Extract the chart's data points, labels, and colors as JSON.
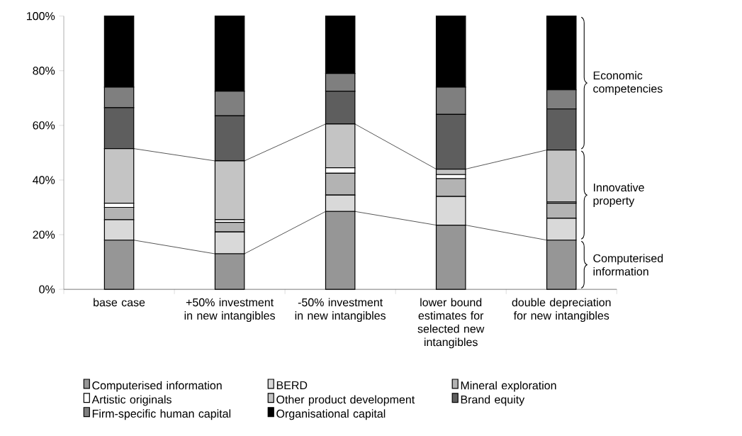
{
  "chart_data": {
    "type": "bar",
    "stacked": true,
    "categories": [
      "base case",
      "+50% investment in new intangibles",
      "-50% investment in new intangibles",
      "lower bound estimates for selected new intangibles",
      "double depreciation for new intangibles"
    ],
    "series": [
      {
        "name": "Computerised information",
        "color": "#969696",
        "values": [
          18,
          13,
          28.5,
          23.5,
          18
        ]
      },
      {
        "name": "BERD",
        "color": "#d9d9d9",
        "values": [
          7.5,
          8,
          6,
          10.5,
          8
        ]
      },
      {
        "name": "Mineral exploration",
        "color": "#b3b3b3",
        "values": [
          4.5,
          3.5,
          8,
          6.5,
          5.5
        ]
      },
      {
        "name": "Artistic originals",
        "color": "#ffffff",
        "values": [
          1.5,
          1,
          2,
          1.5,
          0.5
        ]
      },
      {
        "name": "Other product development",
        "color": "#c4c4c4",
        "values": [
          20,
          21.5,
          16,
          2,
          19
        ]
      },
      {
        "name": "Brand equity",
        "color": "#5e5e5e",
        "values": [
          15,
          16.5,
          12,
          20,
          15
        ]
      },
      {
        "name": "Firm-specific human capital",
        "color": "#7f7f7f",
        "values": [
          7.5,
          9,
          6.5,
          10,
          7
        ]
      },
      {
        "name": "Organisational capital",
        "color": "#000000",
        "values": [
          26,
          27.5,
          21,
          26,
          27
        ]
      }
    ],
    "ylim": [
      0,
      100
    ],
    "yticks": [
      {
        "value": 0,
        "label": "0%"
      },
      {
        "value": 20,
        "label": "20%"
      },
      {
        "value": 40,
        "label": "40%"
      },
      {
        "value": 60,
        "label": "60%"
      },
      {
        "value": 80,
        "label": "80%"
      },
      {
        "value": 100,
        "label": "100%"
      }
    ],
    "legend": "bottom",
    "annotations": [
      "Computerised information",
      "Innovative property",
      "Economic competencies"
    ]
  }
}
